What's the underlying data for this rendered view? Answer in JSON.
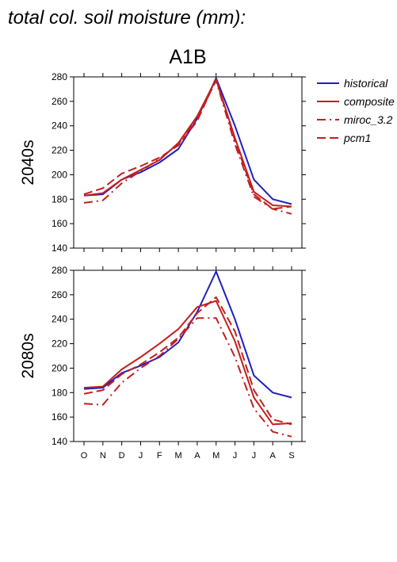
{
  "figure": {
    "title": "total col. soil moisture (mm):",
    "scenario": "A1B"
  },
  "legend": [
    {
      "label": "historical",
      "style": "solid",
      "color": "#1f1fbf"
    },
    {
      "label": "composite",
      "style": "solid",
      "color": "#c21f1f"
    },
    {
      "label": "miroc_3.2",
      "style": "dashdot",
      "color": "#c21f1f"
    },
    {
      "label": "pcm1",
      "style": "dash",
      "color": "#c21f1f"
    }
  ],
  "chart_data": [
    {
      "type": "line",
      "panel_label": "2040s",
      "categories": [
        "O",
        "N",
        "D",
        "J",
        "F",
        "M",
        "A",
        "M",
        "J",
        "J",
        "A",
        "S"
      ],
      "ylim": [
        140,
        280
      ],
      "yticks": [
        140,
        160,
        180,
        200,
        220,
        240,
        260,
        280
      ],
      "series": [
        {
          "name": "historical",
          "values": [
            183,
            184,
            196,
            202,
            210,
            221,
            246,
            279,
            240,
            196,
            180,
            176
          ]
        },
        {
          "name": "composite",
          "values": [
            183,
            185,
            196,
            204,
            212,
            226,
            248,
            278,
            230,
            186,
            175,
            174
          ]
        },
        {
          "name": "miroc_3.2",
          "values": [
            177,
            179,
            193,
            203,
            213,
            225,
            246,
            277,
            225,
            182,
            172,
            168
          ]
        },
        {
          "name": "pcm1",
          "values": [
            184,
            189,
            201,
            207,
            214,
            224,
            244,
            278,
            228,
            184,
            172,
            174
          ]
        }
      ]
    },
    {
      "type": "line",
      "panel_label": "2080s",
      "categories": [
        "O",
        "N",
        "D",
        "J",
        "F",
        "M",
        "A",
        "M",
        "J",
        "J",
        "A",
        "S"
      ],
      "ylim": [
        140,
        280
      ],
      "yticks": [
        140,
        160,
        180,
        200,
        220,
        240,
        260,
        280
      ],
      "series": [
        {
          "name": "historical",
          "values": [
            183,
            184,
            196,
            202,
            209,
            221,
            246,
            279,
            240,
            194,
            180,
            176
          ]
        },
        {
          "name": "composite",
          "values": [
            184,
            185,
            199,
            209,
            220,
            232,
            250,
            255,
            222,
            176,
            154,
            155
          ]
        },
        {
          "name": "miroc_3.2",
          "values": [
            171,
            170,
            188,
            200,
            210,
            224,
            241,
            241,
            209,
            167,
            148,
            144
          ]
        },
        {
          "name": "pcm1",
          "values": [
            179,
            182,
            195,
            203,
            213,
            225,
            245,
            258,
            230,
            182,
            158,
            154
          ]
        }
      ]
    }
  ]
}
